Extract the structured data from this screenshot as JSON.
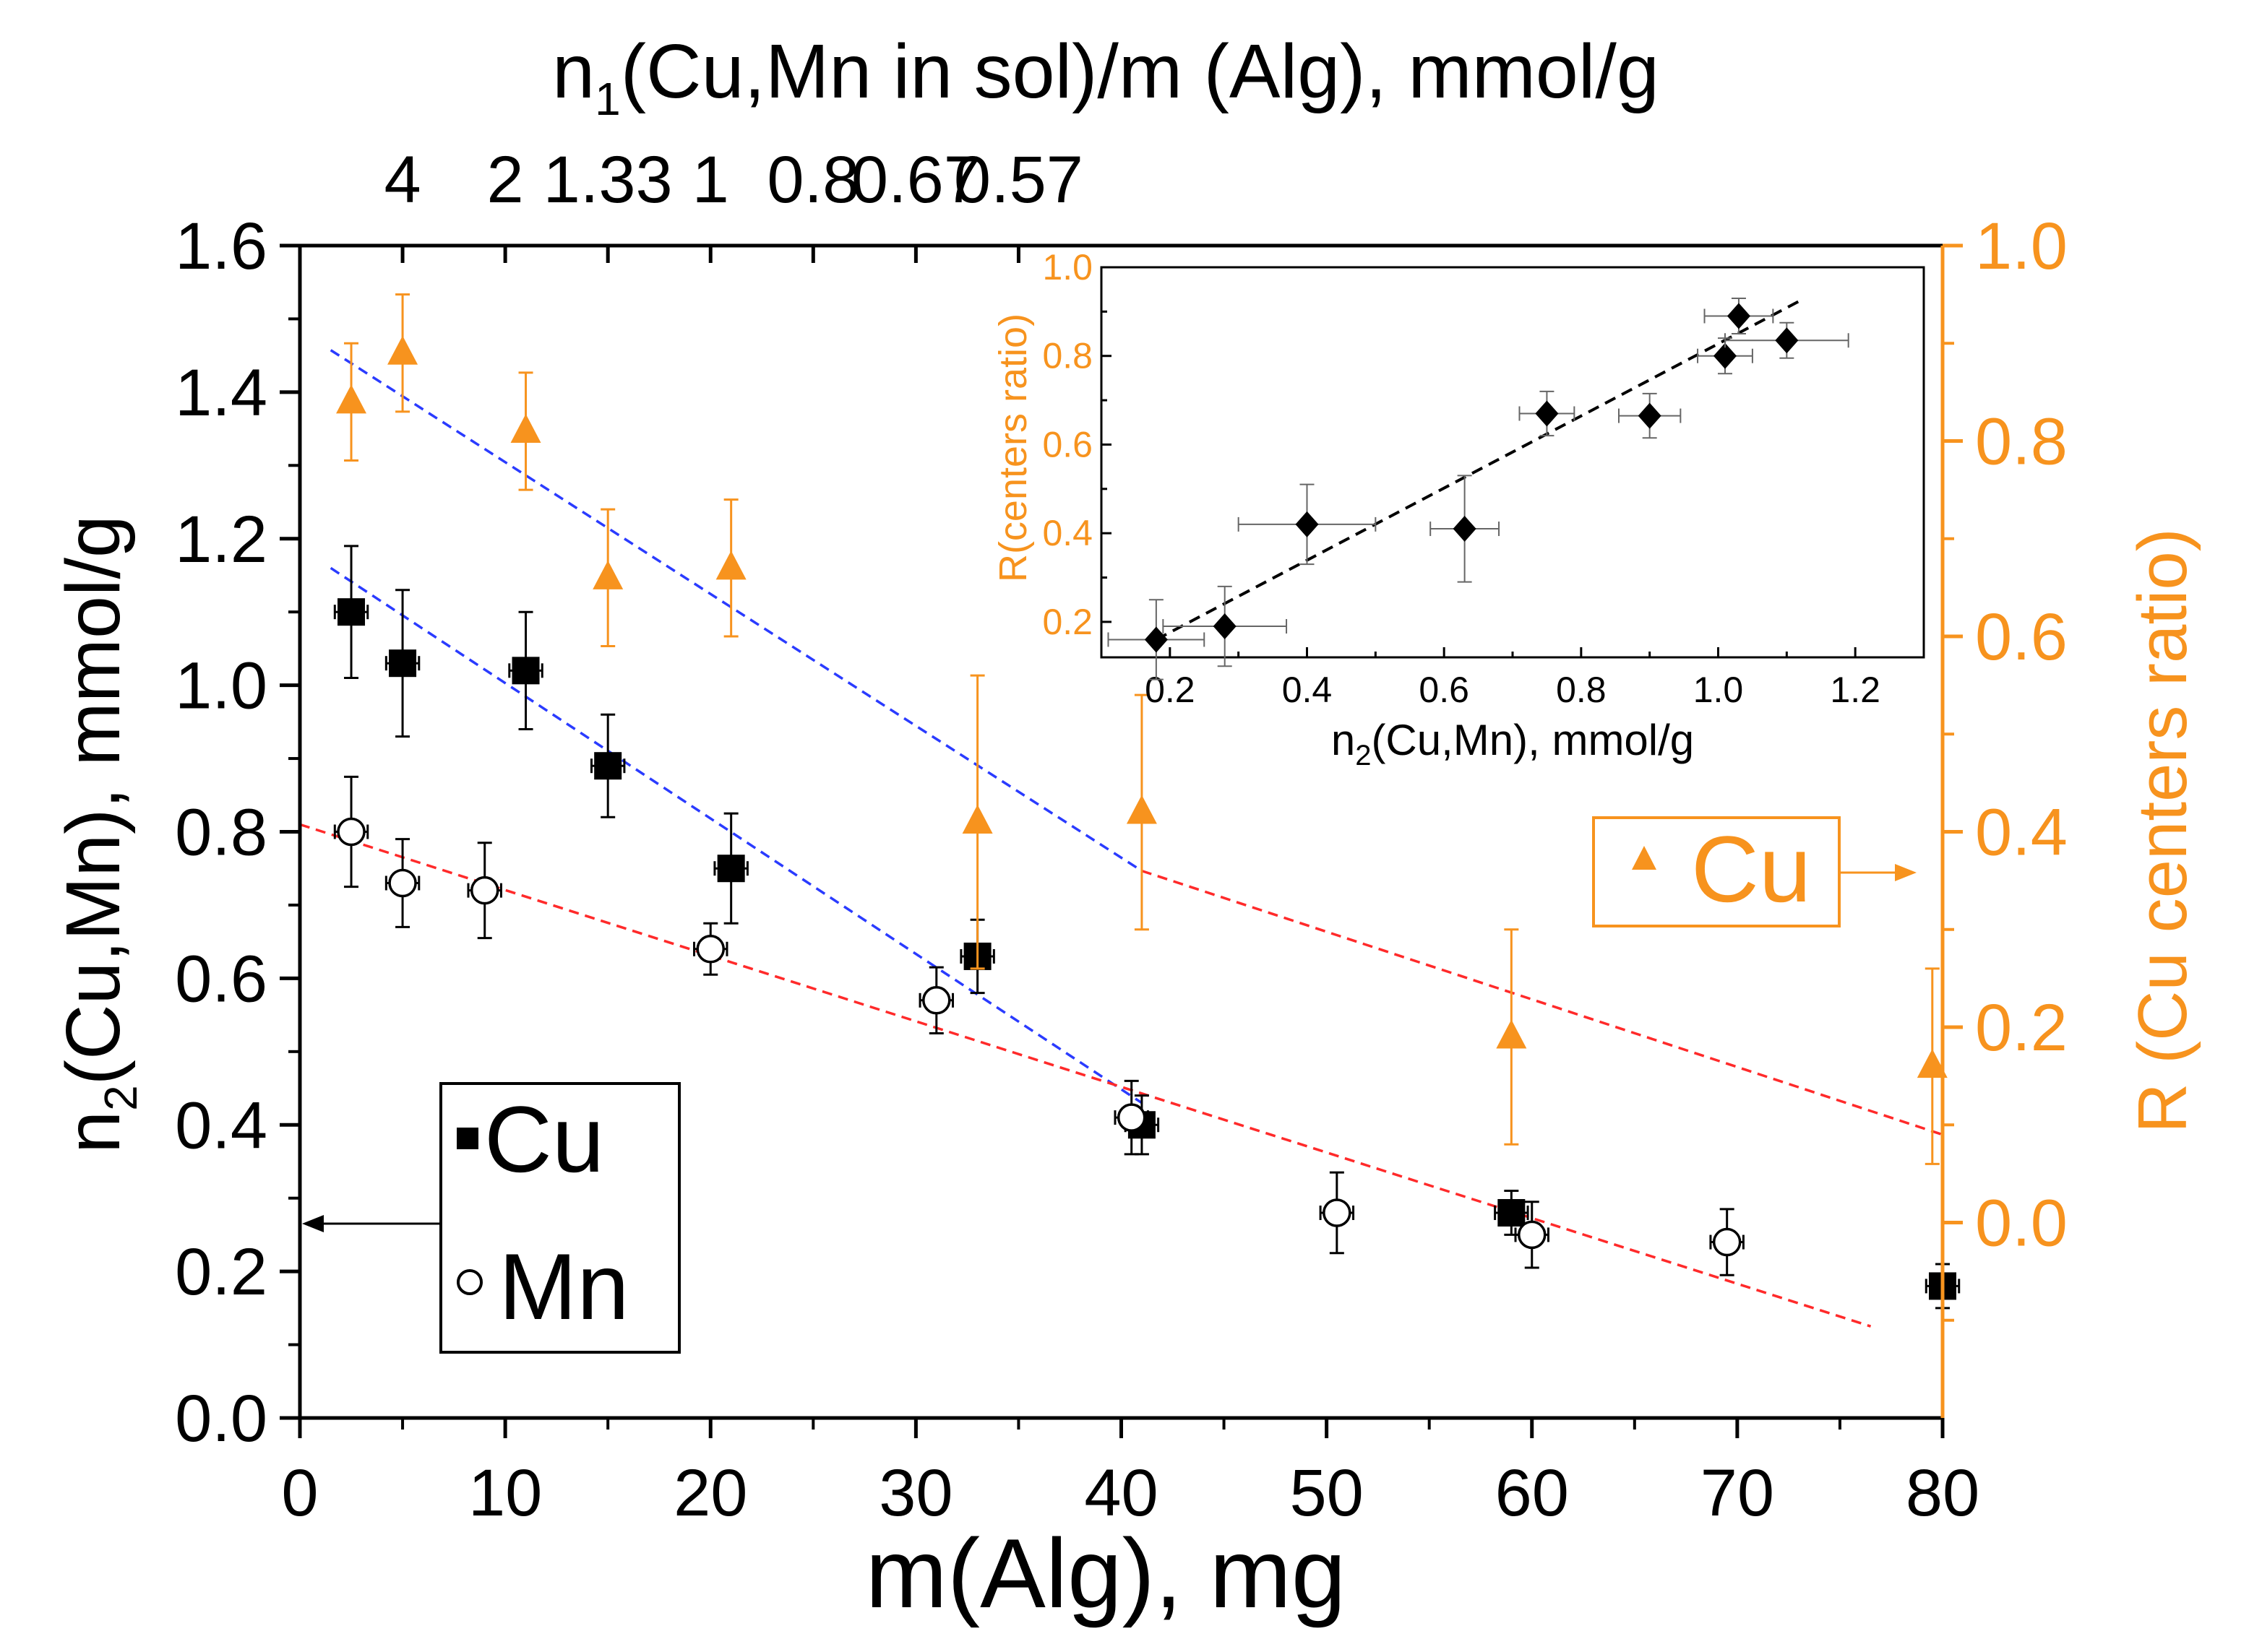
{
  "chart_data": {
    "type": "scatter",
    "colors": {
      "axis": "#000000",
      "right_axis": "#f7931e",
      "cu_series": "#000000",
      "mn_series": "#000000",
      "ratio_series": "#f7931e",
      "fit_cu": "#2a3bff",
      "fit_mn": "#ff2a2a",
      "fit_ratio": "#ff2a2a",
      "fit_ratio_left": "#2a3bff",
      "inset_fit": "#000000"
    },
    "main": {
      "xlabel": "m(Alg), mg",
      "ylabel": "n2(Cu,Mn), mmol/g",
      "ylabel_parts": {
        "pre": "n",
        "sub": "2",
        "post": "(Cu,Mn), mmol/g"
      },
      "xlim": [
        0,
        80
      ],
      "ylim": [
        0,
        1.6
      ],
      "xticks": [
        "0",
        "10",
        "20",
        "30",
        "40",
        "50",
        "60",
        "70",
        "80"
      ],
      "yticks": [
        "0.0",
        "0.2",
        "0.4",
        "0.6",
        "0.8",
        "1.0",
        "1.2",
        "1.4",
        "1.6"
      ],
      "right_ylabel": "R (Cu centers ratio)",
      "right_ylim": [
        -0.2,
        1.0
      ],
      "right_yticks": [
        "0.0",
        "0.2",
        "0.4",
        "0.6",
        "0.8",
        "1.0"
      ],
      "top_xlabel": "n1(Cu,Mn in sol)/m (Alg), mmol/g",
      "top_xlabel_parts": {
        "pre": "n",
        "sub": "1",
        "post": "(Cu,Mn in sol)/m (Alg), mmol/g"
      },
      "top_ticks": [
        {
          "label": "4",
          "x": 5
        },
        {
          "label": "2",
          "x": 10
        },
        {
          "label": "1.33",
          "x": 15
        },
        {
          "label": "1",
          "x": 20
        },
        {
          "label": "0.8",
          "x": 25
        },
        {
          "label": "0.67",
          "x": 30
        },
        {
          "label": "0.57",
          "x": 35
        }
      ],
      "series": [
        {
          "name": "Cu",
          "axis": "left",
          "marker": "filled-square",
          "x": [
            2.5,
            5,
            11,
            15,
            21,
            33,
            41,
            59,
            80
          ],
          "y": [
            1.1,
            1.03,
            1.02,
            0.89,
            0.75,
            0.63,
            0.4,
            0.28,
            0.18
          ],
          "yerr": [
            0.09,
            0.1,
            0.08,
            0.07,
            0.075,
            0.05,
            0.04,
            0.03,
            0.03
          ],
          "xerr": [
            0.8,
            0.8,
            0.8,
            0.8,
            0.8,
            0.8,
            0.8,
            0.8,
            0.8
          ]
        },
        {
          "name": "Mn",
          "axis": "left",
          "marker": "open-circle",
          "x": [
            2.5,
            5,
            9,
            20,
            31,
            40.5,
            50.5,
            60,
            69.5
          ],
          "y": [
            0.8,
            0.73,
            0.72,
            0.64,
            0.57,
            0.41,
            0.28,
            0.25,
            0.24
          ],
          "yerr": [
            0.075,
            0.06,
            0.065,
            0.035,
            0.045,
            0.05,
            0.055,
            0.045,
            0.045
          ],
          "xerr": [
            0.8,
            0.8,
            0.8,
            0.8,
            0.8,
            0.8,
            0.8,
            0.8,
            0.8
          ]
        },
        {
          "name": "Cu",
          "axis": "right",
          "marker": "filled-triangle",
          "x": [
            2.5,
            5,
            11,
            15,
            21,
            33,
            41,
            59,
            79.5
          ],
          "y": [
            0.84,
            0.89,
            0.81,
            0.66,
            0.67,
            0.41,
            0.42,
            0.19,
            0.16
          ],
          "yerr": [
            0.06,
            0.06,
            0.06,
            0.07,
            0.07,
            0.15,
            0.12,
            0.11,
            0.1
          ]
        }
      ],
      "fits": [
        {
          "id": "fit-cu",
          "axis": "left",
          "color": "#2a3bff",
          "x": [
            1.5,
            41
          ],
          "y": [
            1.16,
            0.43
          ]
        },
        {
          "id": "fit-mn",
          "axis": "left",
          "color": "#ff2a2a",
          "x": [
            0,
            76.5
          ],
          "y": [
            0.81,
            0.125
          ]
        },
        {
          "id": "fit-ratio-a",
          "axis": "right",
          "color": "#2a3bff",
          "x": [
            1.5,
            41
          ],
          "y": [
            0.893,
            0.36
          ]
        },
        {
          "id": "fit-ratio-b",
          "axis": "right",
          "color": "#ff2a2a",
          "x": [
            41,
            80
          ],
          "y": [
            0.36,
            0.09
          ]
        }
      ],
      "legend_left": {
        "items": [
          "Cu",
          "Mn"
        ]
      },
      "legend_right": {
        "items": [
          "Cu"
        ]
      }
    },
    "inset": {
      "xlabel": "n2(Cu,Mn), mmol/g",
      "xlabel_parts": {
        "pre": "n",
        "sub": "2",
        "post": "(Cu,Mn), mmol/g"
      },
      "ylabel": "R(centers ratio)",
      "xlim": [
        0.1,
        1.3
      ],
      "ylim": [
        0.12,
        1.0
      ],
      "xticks": [
        "0.2",
        "0.4",
        "0.6",
        "0.8",
        "1.0",
        "1.2"
      ],
      "yticks": [
        "0.2",
        "0.4",
        "0.6",
        "0.8",
        "1.0"
      ],
      "series": [
        {
          "name": "",
          "marker": "filled-diamond",
          "x": [
            0.18,
            0.28,
            0.4,
            0.63,
            0.75,
            0.9,
            1.01,
            1.03,
            1.1
          ],
          "y": [
            0.16,
            0.19,
            0.42,
            0.41,
            0.67,
            0.665,
            0.8,
            0.89,
            0.835
          ],
          "xerr": [
            0.07,
            0.09,
            0.1,
            0.05,
            0.04,
            0.045,
            0.04,
            0.05,
            0.09
          ],
          "yerr": [
            0.09,
            0.09,
            0.09,
            0.12,
            0.05,
            0.05,
            0.04,
            0.04,
            0.04
          ]
        }
      ],
      "fit": {
        "x": [
          0.18,
          1.12
        ],
        "y": [
          0.16,
          0.925
        ]
      }
    }
  }
}
